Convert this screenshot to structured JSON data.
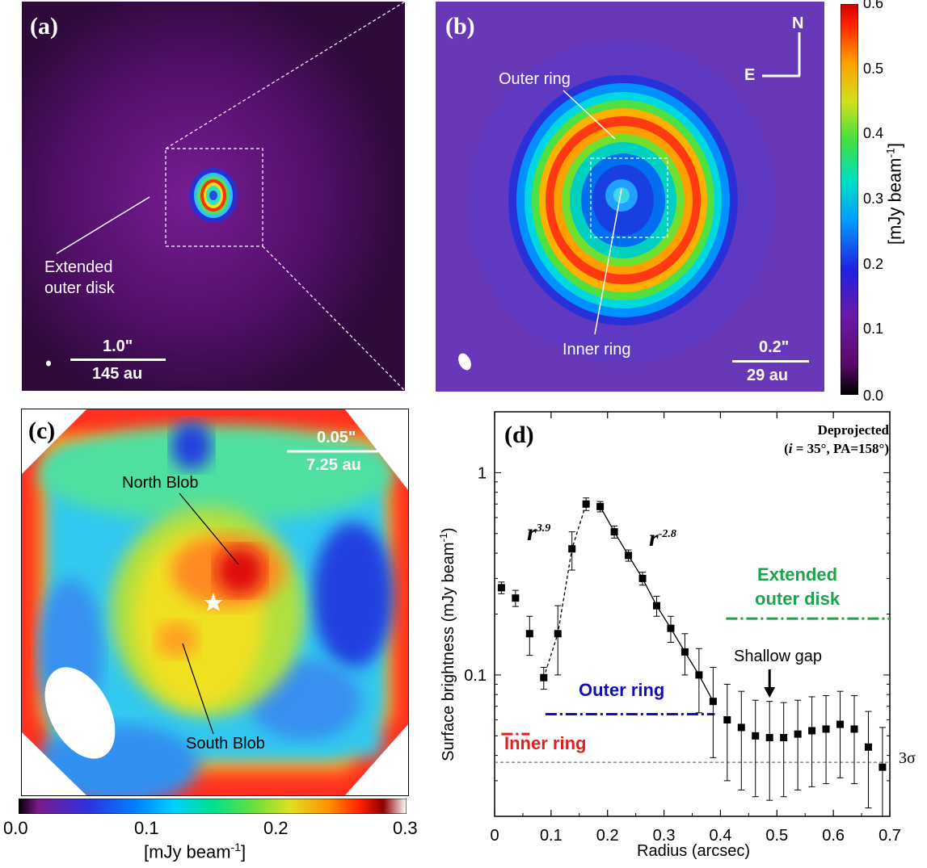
{
  "panel_a": {
    "label": "(a)",
    "annotation": [
      "Extended",
      "outer disk"
    ],
    "scalebar_top": "1.0\"",
    "scalebar_bottom": "145 au"
  },
  "panel_b": {
    "label": "(b)",
    "outer_ring_label": "Outer ring",
    "inner_ring_label": "Inner ring",
    "compass_n": "N",
    "compass_e": "E",
    "scalebar_top": "0.2\"",
    "scalebar_bottom": "29 au",
    "colorbar": {
      "ticks": [
        "0.0",
        "0.1",
        "0.2",
        "0.3",
        "0.4",
        "0.5",
        "0.6"
      ],
      "label_main": "[mJy beam",
      "label_sup": "-1",
      "label_end": "]"
    }
  },
  "panel_c": {
    "label": "(c)",
    "north_blob_label": "North Blob",
    "south_blob_label": "South Blob",
    "scalebar_top": "0.05\"",
    "scalebar_bottom": "7.25 au",
    "colorbar": {
      "ticks": [
        "0.0",
        "0.1",
        "0.2",
        "0.3"
      ],
      "label_main": "[mJy beam",
      "label_sup": "-1",
      "label_end": "]"
    }
  },
  "panel_d": {
    "label": "(d)",
    "title_line1": "Deprojected",
    "title_line2_i": "i",
    "title_line2_rest": " = 35°, PA=158°)",
    "title_line2_open": "(",
    "powerlaw_rise_base": "r",
    "powerlaw_rise_exp": "3.9",
    "powerlaw_fall_base": "r",
    "powerlaw_fall_exp": "-2.8",
    "extended_label": [
      "Extended",
      "outer disk"
    ],
    "outer_ring_label": "Outer ring",
    "inner_ring_label": "Inner ring",
    "gap_label": "Shallow gap",
    "sigma_label": "3σ",
    "colors": {
      "extended": "#1fa34a",
      "outer": "#1010b0",
      "inner": "#e02020"
    }
  },
  "chart_data": {
    "type": "scatter",
    "xlabel": "Radius (arcsec)",
    "ylabel": "Surface brightness (mJy beam",
    "ylabel_sup": "-1",
    "ylabel_end": ")",
    "xlim": [
      0,
      0.7
    ],
    "ylim": [
      0.02,
      2
    ],
    "yscale": "log",
    "x_ticks": [
      "0",
      "0.1",
      "0.2",
      "0.3",
      "0.4",
      "0.5",
      "0.6",
      "0.7"
    ],
    "y_ticks": [
      {
        "value": 1,
        "label": "1"
      },
      {
        "value": 0.1,
        "label": "0.1"
      }
    ],
    "series": [
      {
        "x": [
          0.012,
          0.037,
          0.062,
          0.087,
          0.112,
          0.137,
          0.162,
          0.187,
          0.212,
          0.237,
          0.262,
          0.287,
          0.312,
          0.337,
          0.362,
          0.387,
          0.412,
          0.437,
          0.462,
          0.487,
          0.512,
          0.537,
          0.562,
          0.587,
          0.612,
          0.637,
          0.662,
          0.687
        ],
        "y": [
          0.27,
          0.24,
          0.16,
          0.097,
          0.16,
          0.42,
          0.7,
          0.68,
          0.51,
          0.39,
          0.3,
          0.22,
          0.17,
          0.13,
          0.1,
          0.074,
          0.06,
          0.055,
          0.05,
          0.049,
          0.049,
          0.051,
          0.053,
          0.054,
          0.057,
          0.054,
          0.044,
          0.035
        ],
        "yerr": [
          0.018,
          0.022,
          0.035,
          0.012,
          0.06,
          0.09,
          0.05,
          0.04,
          0.035,
          0.025,
          0.022,
          0.025,
          0.025,
          0.03,
          0.035,
          0.035,
          0.03,
          0.028,
          0.025,
          0.025,
          0.024,
          0.024,
          0.025,
          0.025,
          0.026,
          0.025,
          0.022,
          0.02
        ]
      }
    ],
    "fits": [
      {
        "exponent": 3.9,
        "x_range": [
          0.087,
          0.162
        ],
        "style": "dashed"
      },
      {
        "exponent": -2.8,
        "x_range": [
          0.187,
          0.387
        ],
        "style": "solid"
      }
    ],
    "ranges": [
      {
        "name": "Extended outer disk",
        "x_range": [
          0.41,
          0.7
        ],
        "y": 0.19
      },
      {
        "name": "Outer ring",
        "x_range": [
          0.09,
          0.39
        ],
        "y": 0.064
      },
      {
        "name": "Inner ring",
        "x_range": [
          0.012,
          0.062
        ],
        "y": 0.051
      }
    ],
    "threshold_3sigma": 0.037,
    "gap_x": 0.487
  }
}
